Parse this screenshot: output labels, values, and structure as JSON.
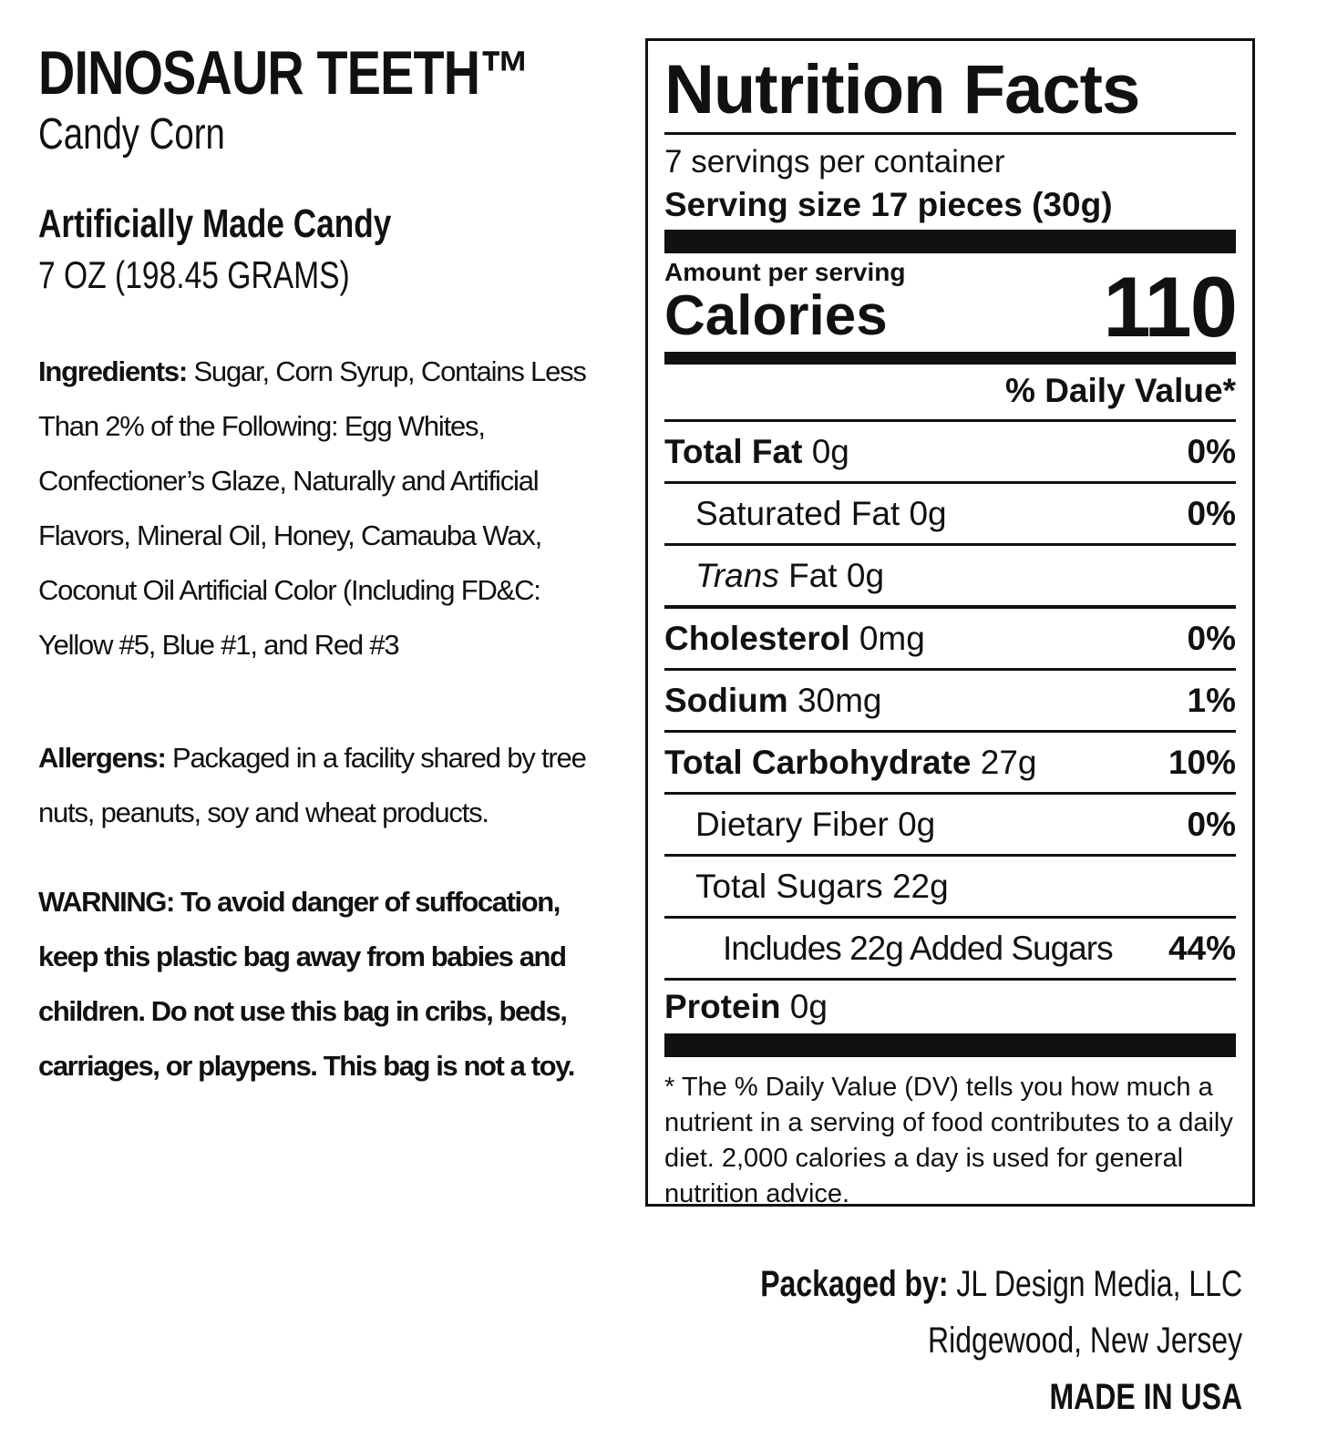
{
  "product": {
    "name": "DINOSAUR TEETH™",
    "subtitle": "Candy Corn",
    "type": "Artificially Made Candy",
    "weight": "7 OZ (198.45 GRAMS)"
  },
  "ingredients": {
    "label": "Ingredients:",
    "text": "Sugar, Corn Syrup, Contains Less Than 2% of the Following: Egg Whites, Confectioner’s Glaze, Naturally and Artificial Flavors, Mineral Oil, Honey, Camauba Wax, Coconut Oil  Artificial Color (Including FD&C: Yellow #5, Blue #1, and Red #3"
  },
  "allergens": {
    "label": "Allergens:",
    "text": "Packaged in a facility shared by tree nuts, peanuts, soy and wheat products."
  },
  "warning": {
    "text": "WARNING: To avoid danger of suffocation, keep this plastic bag away from babies and children. Do not use this bag in cribs, beds, carriages, or playpens. This bag is not a toy."
  },
  "nutrition": {
    "title": "Nutrition Facts",
    "servings": "7 servings per container",
    "serving_size": "Serving size 17 pieces (30g)",
    "amount_label": "Amount per serving",
    "calories_label": "Calories",
    "calories": 110,
    "dv_header": "% Daily Value*",
    "rows": [
      {
        "name": "Total Fat",
        "amount": "0g",
        "dv": "0%"
      },
      {
        "name": "Saturated Fat",
        "amount": "0g",
        "dv": "0%"
      },
      {
        "name_italic": "Trans",
        "name": "Fat",
        "amount": "0g"
      },
      {
        "name": "Cholesterol",
        "amount": "0mg",
        "dv": "0%"
      },
      {
        "name": "Sodium",
        "amount": "30mg",
        "dv": "1%"
      },
      {
        "name": "Total Carbohydrate",
        "amount": "27g",
        "dv": "10%"
      },
      {
        "name": "Dietary Fiber",
        "amount": "0g",
        "dv": "0%"
      },
      {
        "name": "Total Sugars",
        "amount": "22g"
      },
      {
        "name": "Includes 22g Added Sugars",
        "dv": "44%"
      },
      {
        "name": "Protein",
        "amount": "0g"
      }
    ],
    "footnote": "* The % Daily Value (DV) tells you how much a nutrient in a serving of food contributes to a daily diet. 2,000 calories a day is used for general nutrition advice."
  },
  "packaged": {
    "label": "Packaged by:",
    "company": "JL Design Media, LLC",
    "location": "Ridgewood, New Jersey",
    "origin": "MADE IN USA"
  }
}
